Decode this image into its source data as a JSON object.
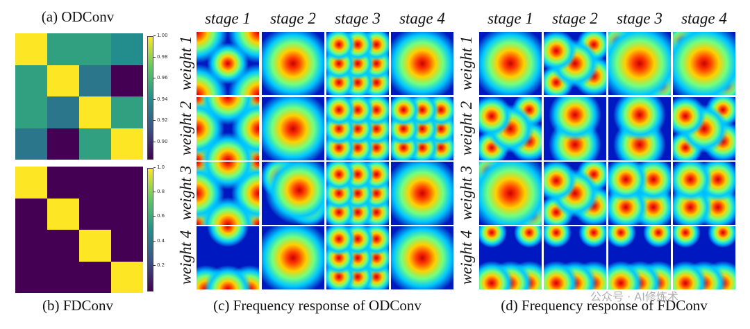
{
  "panel_a": {
    "caption": "(a) ODConv",
    "matrix": [
      [
        1.0,
        0.95,
        0.95,
        0.94
      ],
      [
        0.95,
        1.0,
        0.93,
        0.885
      ],
      [
        0.95,
        0.93,
        1.0,
        0.95
      ],
      [
        0.93,
        0.885,
        0.95,
        1.0
      ]
    ],
    "colorbar": {
      "ticks": [
        "1.00",
        "0.98",
        "0.96",
        "0.94",
        "0.92",
        "0.90"
      ],
      "range": [
        0.885,
        1.0
      ],
      "colormap": "viridis"
    }
  },
  "panel_b": {
    "caption": "(b) FDConv",
    "matrix": [
      [
        1,
        0,
        0,
        0
      ],
      [
        0,
        1,
        0,
        0
      ],
      [
        0,
        0,
        1,
        0
      ],
      [
        0,
        0,
        0,
        1
      ]
    ],
    "colorbar": {
      "ticks": [
        "1.0",
        "0.8",
        "0.6",
        "0.4",
        "0.2"
      ],
      "range": [
        0,
        1.0
      ],
      "colormap": "viridis"
    }
  },
  "panel_c": {
    "caption": "(c) Frequency response of ODConv",
    "colormap": "jet"
  },
  "panel_d": {
    "caption": "(d) Frequency response of FDConv",
    "colormap": "jet"
  },
  "stages": [
    "stage 1",
    "stage 2",
    "stage 3",
    "stage 4"
  ],
  "weights": [
    "weight 1",
    "weight 2",
    "weight 3",
    "weight 4"
  ],
  "watermark": "公众号 · AI修炼术"
}
